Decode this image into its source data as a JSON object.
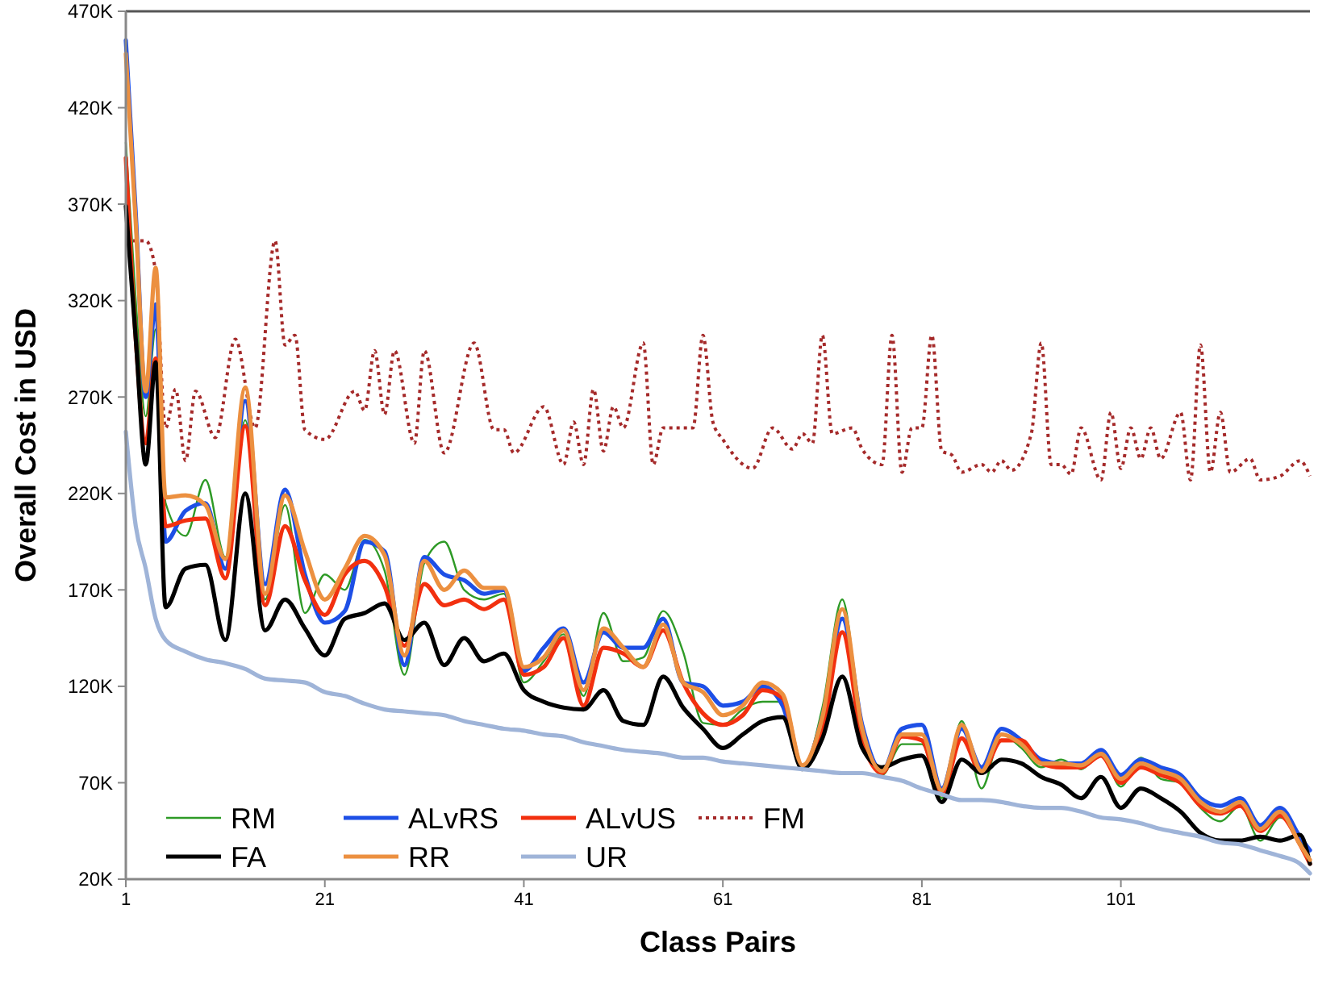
{
  "chart_data": {
    "type": "line",
    "xlabel": "Class Pairs",
    "ylabel": "Overall Cost in USD",
    "x": [
      1,
      2,
      3,
      4,
      5,
      7,
      9,
      11,
      13,
      15,
      17,
      19,
      21,
      23,
      25,
      27,
      29,
      31,
      33,
      35,
      37,
      39,
      41,
      43,
      45,
      47,
      49,
      51,
      53,
      55,
      57,
      59,
      61,
      63,
      65,
      67,
      69,
      71,
      73,
      75,
      77,
      79,
      81,
      83,
      85,
      87,
      89,
      91,
      93,
      95,
      97,
      99,
      101,
      103,
      105,
      107,
      109,
      111,
      113,
      115,
      117,
      119,
      120
    ],
    "xlim": [
      1,
      120
    ],
    "xticks": [
      1,
      21,
      41,
      61,
      81,
      101
    ],
    "ylim": [
      20,
      470
    ],
    "yticks": [
      {
        "value": 20,
        "label": "20K"
      },
      {
        "value": 70,
        "label": "70K"
      },
      {
        "value": 120,
        "label": "120K"
      },
      {
        "value": 170,
        "label": "170K"
      },
      {
        "value": 220,
        "label": "220K"
      },
      {
        "value": 270,
        "label": "270K"
      },
      {
        "value": 320,
        "label": "320K"
      },
      {
        "value": 370,
        "label": "370K"
      },
      {
        "value": 420,
        "label": "420K"
      },
      {
        "value": 470,
        "label": "470K"
      }
    ],
    "grid": false,
    "legend": "bottom left",
    "line_style": "solid",
    "series": [
      {
        "name": "RM",
        "color": "#2e9a26",
        "values": [
          402,
          320,
          260,
          305,
          215,
          198,
          227,
          187,
          258,
          165,
          214,
          158,
          178,
          170,
          196,
          180,
          126,
          184,
          195,
          170,
          165,
          168,
          122,
          133,
          147,
          115,
          158,
          133,
          135,
          159,
          138,
          101,
          100,
          108,
          112,
          112,
          77,
          109,
          165,
          96,
          74,
          90,
          90,
          62,
          102,
          67,
          95,
          88,
          78,
          82,
          77,
          85,
          68,
          83,
          72,
          70,
          57,
          50,
          58,
          40,
          52,
          40,
          30
        ]
      },
      {
        "name": "ALvRS",
        "color": "#1d4fe6",
        "values": [
          455,
          365,
          270,
          318,
          195,
          211,
          215,
          181,
          268,
          173,
          222,
          178,
          153,
          159,
          195,
          190,
          131,
          187,
          178,
          175,
          168,
          170,
          128,
          140,
          150,
          122,
          148,
          140,
          140,
          155,
          122,
          120,
          110,
          112,
          120,
          110,
          78,
          104,
          155,
          100,
          76,
          98,
          100,
          67,
          98,
          78,
          98,
          92,
          82,
          80,
          80,
          87,
          74,
          82,
          78,
          74,
          62,
          58,
          62,
          48,
          57,
          42,
          35
        ]
      },
      {
        "name": "ALvUS",
        "color": "#f2300f",
        "values": [
          394,
          300,
          246,
          290,
          203,
          206,
          207,
          176,
          255,
          162,
          203,
          175,
          157,
          178,
          185,
          172,
          141,
          173,
          162,
          165,
          160,
          165,
          126,
          130,
          145,
          110,
          140,
          137,
          130,
          149,
          122,
          106,
          100,
          105,
          118,
          114,
          78,
          96,
          148,
          92,
          75,
          94,
          92,
          64,
          93,
          75,
          92,
          92,
          80,
          78,
          78,
          84,
          70,
          78,
          74,
          70,
          58,
          54,
          58,
          45,
          53,
          38,
          28
        ]
      },
      {
        "name": "FM",
        "color": "#a52a2a",
        "line_style": "dotted",
        "x": [
          1,
          3,
          4,
          5,
          6,
          7,
          8,
          10,
          12,
          14,
          16,
          17,
          18,
          19,
          21,
          24,
          25,
          26,
          27,
          28,
          30,
          31,
          33,
          36,
          38,
          39,
          40,
          43,
          45,
          46,
          47,
          48,
          49,
          50,
          51,
          53,
          54,
          55,
          58,
          59,
          60,
          61,
          64,
          66,
          68,
          69,
          70,
          71,
          72,
          74,
          75,
          77,
          78,
          79,
          80,
          81,
          82,
          83,
          84,
          85,
          87,
          88,
          89,
          90,
          92,
          93,
          94,
          95,
          96,
          97,
          99,
          100,
          101,
          102,
          103,
          104,
          105,
          107,
          108,
          109,
          110,
          111,
          112,
          114,
          115,
          117,
          119,
          120
        ],
        "values": [
          351,
          351,
          335,
          254,
          274,
          237,
          273,
          249,
          300,
          254,
          351,
          297,
          302,
          253,
          248,
          273,
          263,
          294,
          261,
          294,
          246,
          294,
          241,
          298,
          253,
          253,
          241,
          265,
          235,
          257,
          235,
          274,
          242,
          265,
          254,
          298,
          235,
          254,
          254,
          302,
          257,
          248,
          233,
          254,
          243,
          251,
          246,
          302,
          251,
          254,
          243,
          235,
          302,
          231,
          254,
          254,
          302,
          242,
          240,
          231,
          235,
          231,
          237,
          232,
          251,
          298,
          235,
          235,
          230,
          254,
          227,
          262,
          233,
          254,
          238,
          254,
          238,
          262,
          227,
          297,
          231,
          262,
          231,
          238,
          227,
          229,
          237,
          229
        ]
      },
      {
        "name": "FA",
        "color": "#000000",
        "values": [
          369,
          300,
          235,
          288,
          161,
          181,
          183,
          144,
          220,
          149,
          165,
          150,
          136,
          155,
          158,
          163,
          144,
          153,
          131,
          145,
          133,
          137,
          118,
          112,
          109,
          108,
          118,
          102,
          100,
          125,
          109,
          98,
          88,
          95,
          102,
          104,
          77,
          93,
          125,
          88,
          78,
          82,
          84,
          60,
          82,
          75,
          82,
          80,
          73,
          69,
          62,
          73,
          57,
          67,
          62,
          55,
          44,
          40,
          40,
          42,
          40,
          43,
          28
        ]
      },
      {
        "name": "RR",
        "color": "#ec9040",
        "values": [
          448,
          360,
          273,
          337,
          218,
          219,
          214,
          186,
          275,
          168,
          219,
          190,
          165,
          181,
          198,
          188,
          136,
          185,
          170,
          180,
          171,
          171,
          130,
          135,
          149,
          118,
          150,
          140,
          130,
          152,
          122,
          117,
          105,
          110,
          122,
          116,
          79,
          104,
          160,
          98,
          76,
          95,
          95,
          66,
          100,
          76,
          95,
          90,
          80,
          80,
          79,
          85,
          72,
          80,
          76,
          72,
          60,
          55,
          60,
          46,
          55,
          38,
          30
        ]
      },
      {
        "name": "UR",
        "color": "#9fb4d8",
        "x": [
          1,
          2,
          3,
          4,
          5,
          7,
          9,
          11,
          13,
          15,
          17,
          19,
          21,
          23,
          25,
          27,
          29,
          31,
          33,
          35,
          37,
          39,
          41,
          43,
          45,
          47,
          49,
          51,
          53,
          55,
          57,
          59,
          61,
          63,
          65,
          67,
          69,
          71,
          73,
          75,
          77,
          79,
          81,
          83,
          85,
          87,
          89,
          91,
          93,
          95,
          97,
          99,
          101,
          103,
          105,
          107,
          109,
          111,
          113,
          115,
          117,
          119,
          120
        ],
        "values": [
          252,
          203,
          181,
          155,
          144,
          138,
          134,
          132,
          129,
          124,
          123,
          122,
          117,
          115,
          111,
          108,
          107,
          106,
          105,
          102,
          100,
          98,
          97,
          95,
          94,
          91,
          89,
          87,
          86,
          85,
          83,
          83,
          81,
          80,
          79,
          78,
          77,
          76,
          75,
          75,
          73,
          71,
          67,
          64,
          61,
          61,
          60,
          58,
          57,
          57,
          55,
          52,
          51,
          49,
          46,
          44,
          42,
          39,
          38,
          35,
          32,
          28,
          23
        ]
      }
    ]
  }
}
